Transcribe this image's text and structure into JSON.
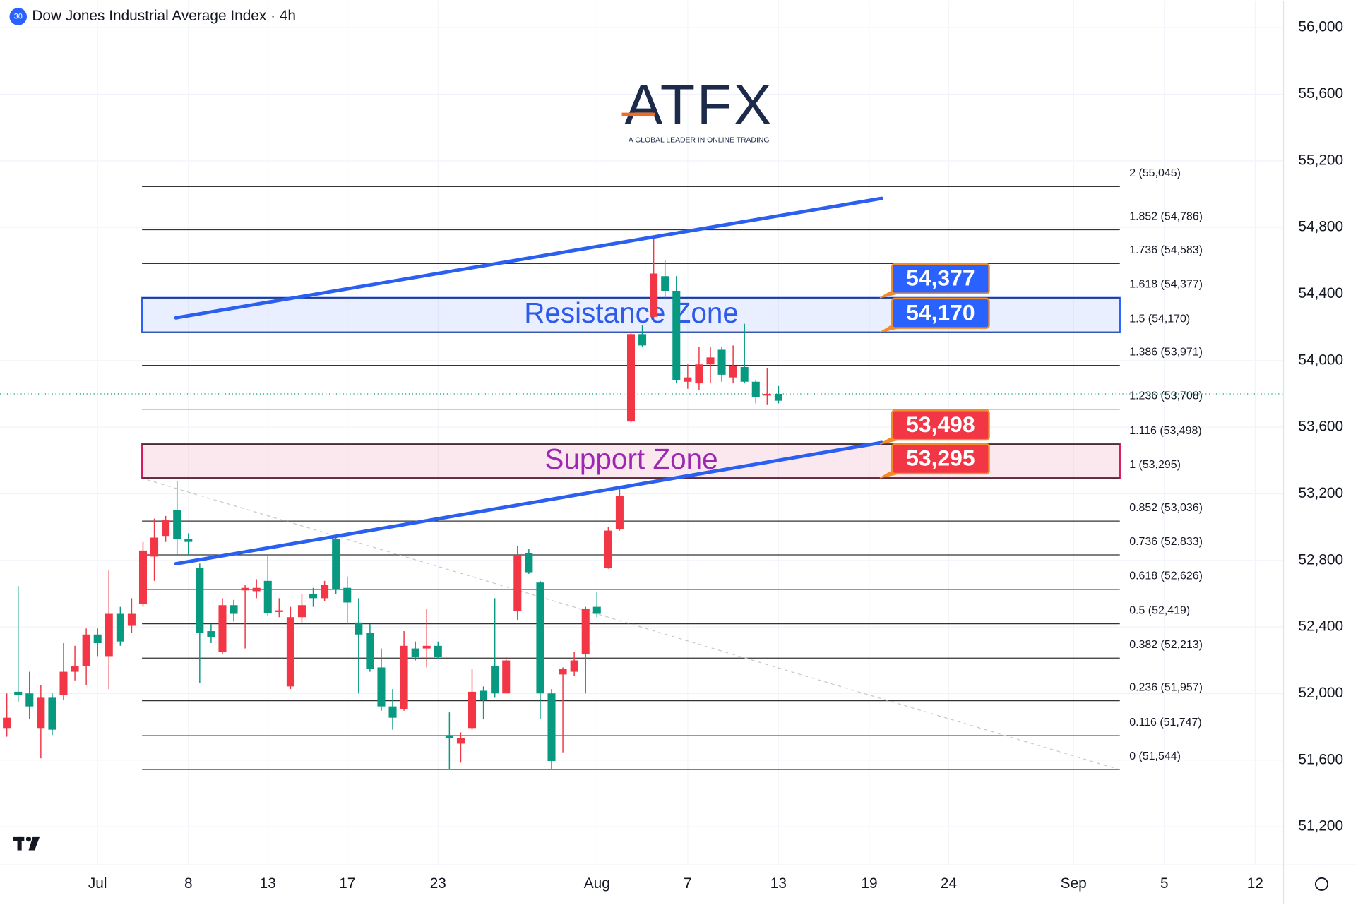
{
  "chart_data": {
    "type": "candlestick",
    "title": "Dow Jones Industrial Average Index · 4h",
    "symbol_badge": "30",
    "watermark": {
      "logo": "ATFX",
      "tagline": "A GLOBAL LEADER IN ONLINE TRADING"
    },
    "up_color": "#089981",
    "down_color": "#f23645",
    "open": [
      51855,
      51991,
      51923,
      51975,
      51783,
      52131,
      52167,
      52355,
      52303,
      52479,
      52313,
      52479,
      52859,
      52937,
      53041,
      52927,
      52911,
      52365,
      52339,
      52531,
      52479,
      52635,
      52635,
      52485,
      52500,
      52459,
      52531,
      52573,
      52651,
      52625,
      52547,
      52355,
      52147,
      51923,
      51855,
      52287,
      52219,
      52287,
      52219,
      51731,
      51731,
      52011,
      51959,
      52001,
      52199,
      52833,
      52729,
      52001,
      51595,
      52147,
      52199,
      52511,
      52479,
      52979,
      53187,
      54159,
      54091,
      54523,
      54419,
      53883,
      53899,
      53977,
      54019,
      53915,
      53967,
      53873,
      53779,
      53800,
      53759
    ],
    "high": [
      52001,
      52646,
      52131,
      52053,
      52001,
      52303,
      52287,
      52391,
      52391,
      52739,
      52521,
      52573,
      52911,
      53051,
      53067,
      53275,
      52963,
      52781,
      52417,
      52573,
      52563,
      52651,
      52687,
      52833,
      52573,
      52521,
      52599,
      52635,
      52677,
      52937,
      52703,
      52573,
      52417,
      52271,
      52027,
      52375,
      52313,
      52511,
      52313,
      51887,
      51767,
      52147,
      52043,
      52573,
      52219,
      52885,
      52869,
      52677,
      52027,
      52157,
      52251,
      52521,
      52609,
      52999,
      53239,
      54169,
      54211,
      54731,
      54601,
      54507,
      53977,
      54081,
      54081,
      54081,
      54091,
      54221,
      53883,
      53956,
      53847
    ],
    "low": [
      51741,
      51949,
      51845,
      51611,
      51751,
      51959,
      52079,
      52053,
      52225,
      52027,
      52287,
      52365,
      52521,
      52677,
      52911,
      52833,
      52833,
      52063,
      52303,
      52235,
      52433,
      52271,
      52573,
      52469,
      52459,
      52027,
      52427,
      52521,
      52557,
      52599,
      52417,
      52001,
      52131,
      51897,
      51783,
      51897,
      52199,
      52157,
      52209,
      51543,
      51585,
      51783,
      51845,
      51975,
      52001,
      52443,
      52719,
      51845,
      51543,
      51647,
      52105,
      52001,
      52459,
      52750,
      52979,
      53629,
      54081,
      54253,
      54367,
      53863,
      53831,
      53821,
      53863,
      53873,
      53863,
      53863,
      53743,
      53733,
      53743
    ],
    "close": [
      51793,
      52011,
      52001,
      51793,
      51975,
      51991,
      52131,
      52167,
      52355,
      52225,
      52479,
      52407,
      52537,
      52823,
      52947,
      53103,
      52927,
      52755,
      52375,
      52251,
      52531,
      52620,
      52615,
      52677,
      52490,
      52043,
      52459,
      52599,
      52573,
      52927,
      52635,
      52427,
      52365,
      52157,
      51923,
      51907,
      52271,
      52271,
      52287,
      51751,
      51699,
      51793,
      52017,
      52167,
      52001,
      52495,
      52843,
      52667,
      52001,
      52115,
      52131,
      52235,
      52521,
      52755,
      52989,
      53634,
      54159,
      54263,
      54507,
      54419,
      53873,
      53863,
      53977,
      54065,
      53899,
      53961,
      53873,
      53790,
      53800
    ],
    "xlim": [
      -0.6,
      112.5
    ],
    "xticks": [
      {
        "value": 8,
        "label": "Jul"
      },
      {
        "value": 16,
        "label": "8"
      },
      {
        "value": 23,
        "label": "13"
      },
      {
        "value": 30,
        "label": "17"
      },
      {
        "value": 38,
        "label": "23"
      },
      {
        "value": 52,
        "label": "Aug"
      },
      {
        "value": 60,
        "label": "7"
      },
      {
        "value": 68,
        "label": "13"
      },
      {
        "value": 76,
        "label": "19"
      },
      {
        "value": 83,
        "label": "24"
      },
      {
        "value": 94,
        "label": "Sep"
      },
      {
        "value": 102,
        "label": "5"
      },
      {
        "value": 110,
        "label": "12"
      }
    ],
    "ylim": [
      50970,
      56160
    ],
    "yticks": [
      {
        "value": 51200,
        "label": "51,200"
      },
      {
        "value": 51600,
        "label": "51,600"
      },
      {
        "value": 52000,
        "label": "52,000"
      },
      {
        "value": 52400,
        "label": "52,400"
      },
      {
        "value": 52800,
        "label": "52,800"
      },
      {
        "value": 53200,
        "label": "53,200"
      },
      {
        "value": 53600,
        "label": "53,600"
      },
      {
        "value": 54000,
        "label": "54,000"
      },
      {
        "value": 54400,
        "label": "54,400"
      },
      {
        "value": 54800,
        "label": "54,800"
      },
      {
        "value": 55200,
        "label": "55,200"
      },
      {
        "value": 55600,
        "label": "55,600"
      },
      {
        "value": 56000,
        "label": "56,000"
      }
    ],
    "grid": true,
    "fib_levels": [
      {
        "value": 55045,
        "label": "2 (55,045)"
      },
      {
        "value": 54786,
        "label": "1.852 (54,786)"
      },
      {
        "value": 54583,
        "label": "1.736 (54,583)"
      },
      {
        "value": 54377,
        "label": "1.618 (54,377)"
      },
      {
        "value": 54170,
        "label": "1.5 (54,170)"
      },
      {
        "value": 53971,
        "label": "1.386 (53,971)"
      },
      {
        "value": 53708,
        "label": "1.236 (53,708)"
      },
      {
        "value": 53498,
        "label": "1.116 (53,498)"
      },
      {
        "value": 53295,
        "label": "1 (53,295)"
      },
      {
        "value": 53036,
        "label": "0.852 (53,036)"
      },
      {
        "value": 52833,
        "label": "0.736 (52,833)"
      },
      {
        "value": 52626,
        "label": "0.618 (52,626)"
      },
      {
        "value": 52419,
        "label": "0.5 (52,419)"
      },
      {
        "value": 52213,
        "label": "0.382 (52,213)"
      },
      {
        "value": 51957,
        "label": "0.236 (51,957)"
      },
      {
        "value": 51747,
        "label": "0.116 (51,747)"
      },
      {
        "value": 51544,
        "label": "0 (51,544)"
      }
    ],
    "zones": [
      {
        "label": "Resistance Zone",
        "range": [
          54170,
          54377
        ],
        "color": "#2962ff",
        "text_color": "#2f5bea"
      },
      {
        "label": "Support Zone",
        "range": [
          53295,
          53498
        ],
        "color": "#d81b60",
        "text_color": "#9c27b0"
      }
    ],
    "price_tags": [
      {
        "value": 54377,
        "label": "54,377",
        "color": "#2962ff"
      },
      {
        "value": 54170,
        "label": "54,170",
        "color": "#2962ff"
      },
      {
        "value": 53498,
        "label": "53,498",
        "color": "#f23645"
      },
      {
        "value": 53295,
        "label": "53,295",
        "color": "#f23645"
      }
    ]
  }
}
